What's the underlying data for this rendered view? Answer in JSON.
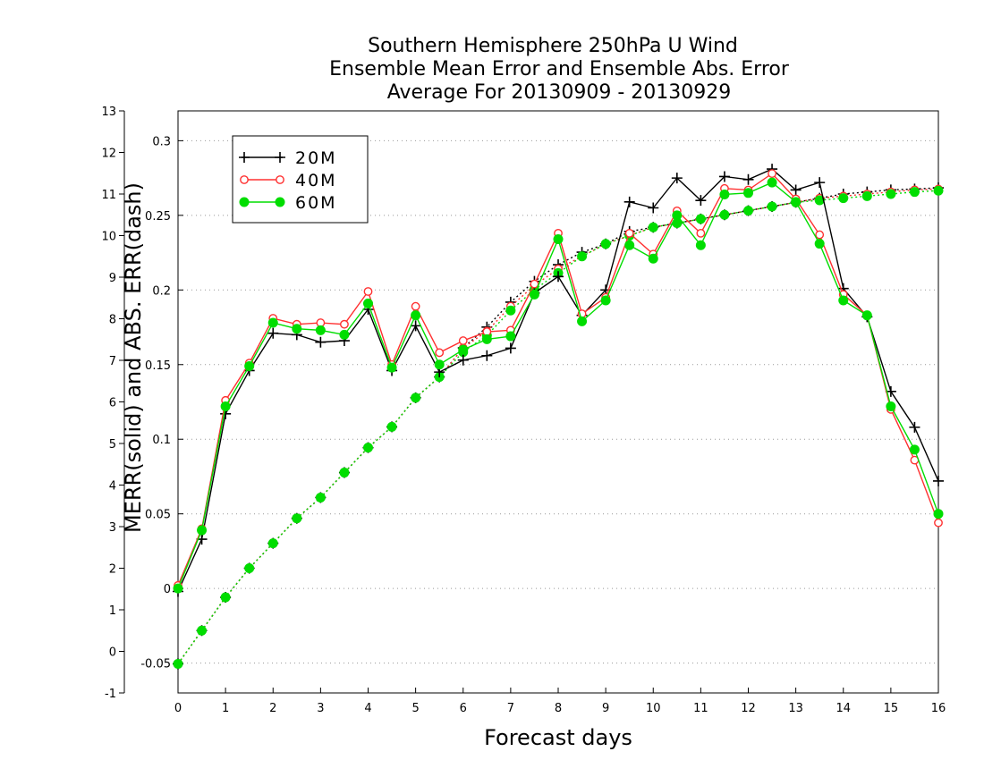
{
  "chart_data": {
    "type": "line",
    "title": [
      "Southern Hemisphere 250hPa U Wind",
      "Ensemble Mean Error and Ensemble Abs. Error",
      "Average For 20130909 - 20130929"
    ],
    "xlabel": "Forecast days",
    "ylabel": "MERR(solid) and ABS. ERR(dash)",
    "xlim": [
      0,
      16
    ],
    "x_ticks": [
      "0",
      "1",
      "2",
      "3",
      "4",
      "5",
      "6",
      "7",
      "8",
      "9",
      "10",
      "11",
      "12",
      "13",
      "14",
      "15",
      "16"
    ],
    "y_left_lim": [
      -1,
      13
    ],
    "y_left_ticks": [
      "-1",
      "0",
      "1",
      "2",
      "3",
      "4",
      "5",
      "6",
      "7",
      "8",
      "9",
      "10",
      "11",
      "12",
      "13"
    ],
    "y_right_lim": [
      -0.07,
      0.32
    ],
    "y_right_ticks": [
      "-0.05",
      "0",
      "0.05",
      "0.1",
      "0.15",
      "0.2",
      "0.25",
      "0.3"
    ],
    "grid": "horizontal dotted",
    "legend_position": "top-left",
    "x": [
      0,
      0.5,
      1,
      1.5,
      2,
      2.5,
      3,
      3.5,
      4,
      4.5,
      5,
      5.5,
      6,
      6.5,
      7,
      7.5,
      8,
      8.5,
      9,
      9.5,
      10,
      10.5,
      11,
      11.5,
      12,
      12.5,
      13,
      13.5,
      14,
      14.5,
      15,
      15.5,
      16
    ],
    "series": [
      {
        "name": "20M",
        "color": "#000000",
        "marker": "plus",
        "line": "solid",
        "axis": "right",
        "values": [
          -0.002,
          0.033,
          0.117,
          0.146,
          0.171,
          0.17,
          0.165,
          0.166,
          0.187,
          0.146,
          0.176,
          0.145,
          0.153,
          0.156,
          0.161,
          0.198,
          0.209,
          0.183,
          0.2,
          0.259,
          0.255,
          0.275,
          0.26,
          0.276,
          0.274,
          0.281,
          0.267,
          0.272,
          0.201,
          0.182,
          0.132,
          0.108,
          0.072
        ]
      },
      {
        "name": "40M",
        "color": "#ff3030",
        "marker": "open-circle",
        "line": "solid",
        "axis": "right",
        "values": [
          0.002,
          0.04,
          0.126,
          0.151,
          0.181,
          0.177,
          0.178,
          0.177,
          0.199,
          0.15,
          0.189,
          0.158,
          0.166,
          0.172,
          0.173,
          0.204,
          0.238,
          0.184,
          0.195,
          0.238,
          0.224,
          0.253,
          0.238,
          0.268,
          0.267,
          0.278,
          0.261,
          0.237,
          0.197,
          0.183,
          0.12,
          0.086,
          0.044
        ]
      },
      {
        "name": "60M",
        "color": "#00dd00",
        "marker": "filled-circle",
        "line": "solid",
        "axis": "right",
        "values": [
          0.0,
          0.039,
          0.122,
          0.149,
          0.178,
          0.174,
          0.173,
          0.17,
          0.191,
          0.148,
          0.183,
          0.15,
          0.16,
          0.167,
          0.169,
          0.197,
          0.234,
          0.179,
          0.193,
          0.23,
          0.221,
          0.25,
          0.23,
          0.264,
          0.265,
          0.272,
          0.259,
          0.231,
          0.193,
          0.183,
          0.122,
          0.093,
          0.05
        ]
      },
      {
        "name": "20M",
        "color": "#000000",
        "marker": "plus",
        "line": "dash",
        "axis": "left",
        "values": [
          -0.3,
          0.5,
          1.3,
          2.0,
          2.6,
          3.2,
          3.7,
          4.3,
          4.9,
          5.4,
          6.1,
          6.6,
          7.3,
          7.8,
          8.4,
          8.9,
          9.3,
          9.6,
          9.8,
          10.1,
          10.2,
          10.3,
          10.4,
          10.5,
          10.6,
          10.7,
          10.8,
          10.9,
          11.0,
          11.05,
          11.1,
          11.12,
          11.15
        ]
      },
      {
        "name": "40M",
        "color": "#ff3030",
        "marker": "open-circle",
        "line": "dash",
        "axis": "left",
        "values": [
          -0.3,
          0.5,
          1.3,
          2.0,
          2.6,
          3.2,
          3.7,
          4.3,
          4.9,
          5.4,
          6.1,
          6.6,
          7.3,
          7.7,
          8.3,
          8.8,
          9.2,
          9.5,
          9.8,
          10.0,
          10.2,
          10.3,
          10.4,
          10.5,
          10.6,
          10.7,
          10.8,
          10.9,
          10.95,
          11.0,
          11.05,
          11.1,
          11.12
        ]
      },
      {
        "name": "60M",
        "color": "#00dd00",
        "marker": "filled-circle",
        "line": "dash",
        "axis": "left",
        "values": [
          -0.3,
          0.5,
          1.3,
          2.0,
          2.6,
          3.2,
          3.7,
          4.3,
          4.9,
          5.4,
          6.1,
          6.6,
          7.2,
          7.6,
          8.2,
          8.7,
          9.1,
          9.5,
          9.8,
          10.0,
          10.2,
          10.3,
          10.4,
          10.5,
          10.6,
          10.7,
          10.8,
          10.85,
          10.9,
          10.95,
          11.0,
          11.05,
          11.08
        ]
      }
    ]
  }
}
